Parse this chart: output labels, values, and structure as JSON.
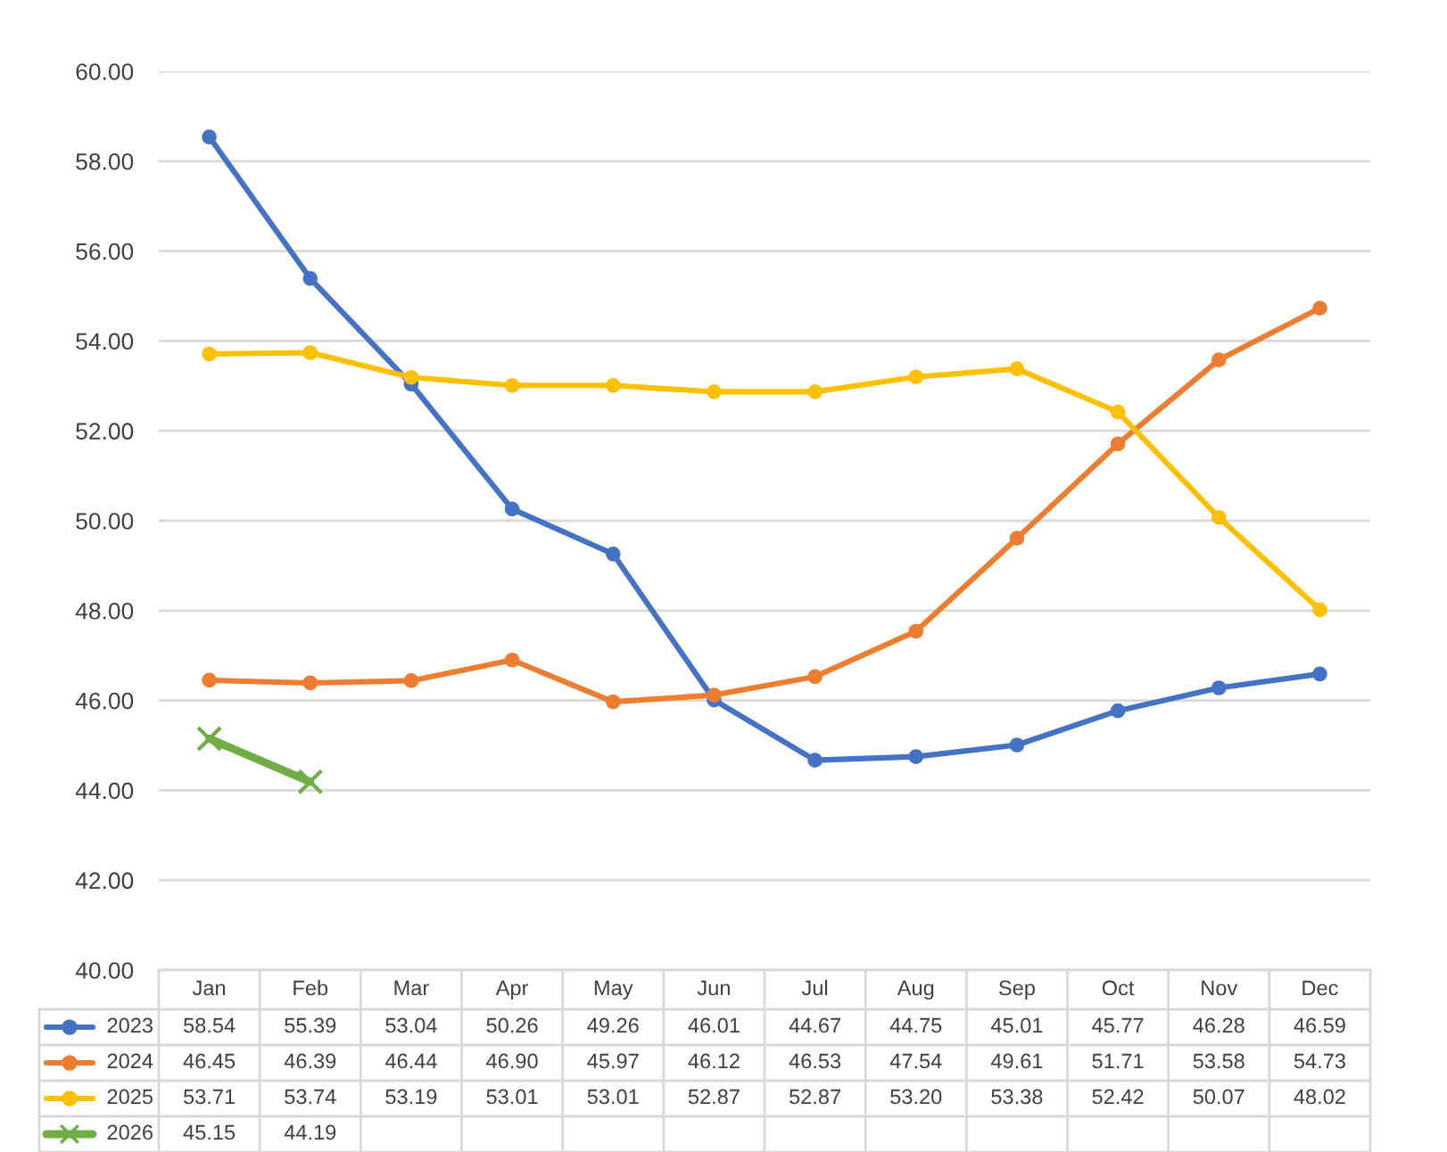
{
  "chart_data": {
    "type": "line",
    "categories": [
      "Jan",
      "Feb",
      "Mar",
      "Apr",
      "May",
      "Jun",
      "Jul",
      "Aug",
      "Sep",
      "Oct",
      "Nov",
      "Dec"
    ],
    "ylim": [
      40,
      60
    ],
    "yticks": [
      {
        "value": 40,
        "label": "40.00"
      },
      {
        "value": 42,
        "label": "42.00"
      },
      {
        "value": 44,
        "label": "44.00"
      },
      {
        "value": 46,
        "label": "46.00"
      },
      {
        "value": 48,
        "label": "48.00"
      },
      {
        "value": 50,
        "label": "50.00"
      },
      {
        "value": 52,
        "label": "52.00"
      },
      {
        "value": 54,
        "label": "54.00"
      },
      {
        "value": 56,
        "label": "56.00"
      },
      {
        "value": 58,
        "label": "58.00"
      },
      {
        "value": 60,
        "label": "60.00"
      }
    ],
    "grid": "y",
    "legend": "bottom",
    "marker": "circle",
    "line_style": "solid",
    "series": [
      {
        "name": "2023",
        "color": "#4472c4",
        "values": [
          58.54,
          55.39,
          53.04,
          50.26,
          49.26,
          46.01,
          44.67,
          44.75,
          45.01,
          45.77,
          46.28,
          46.59
        ],
        "value_labels": [
          "58.54",
          "55.39",
          "53.04",
          "50.26",
          "49.26",
          "46.01",
          "44.67",
          "44.75",
          "45.01",
          "45.77",
          "46.28",
          "46.59"
        ]
      },
      {
        "name": "2024",
        "color": "#ed7d31",
        "values": [
          46.45,
          46.39,
          46.44,
          46.9,
          45.97,
          46.12,
          46.53,
          47.54,
          49.61,
          51.71,
          53.58,
          54.73
        ],
        "value_labels": [
          "46.45",
          "46.39",
          "46.44",
          "46.90",
          "45.97",
          "46.12",
          "46.53",
          "47.54",
          "49.61",
          "51.71",
          "53.58",
          "54.73"
        ]
      },
      {
        "name": "2025",
        "color": "#ffc000",
        "values": [
          53.71,
          53.74,
          53.19,
          53.01,
          53.01,
          52.87,
          52.87,
          53.2,
          53.38,
          52.42,
          50.07,
          48.02
        ],
        "value_labels": [
          "53.71",
          "53.74",
          "53.19",
          "53.01",
          "53.01",
          "52.87",
          "52.87",
          "53.20",
          "53.38",
          "52.42",
          "50.07",
          "48.02"
        ]
      },
      {
        "name": "2026",
        "color": "#70ad47",
        "marker": "cross",
        "values": [
          45.15,
          44.19,
          null,
          null,
          null,
          null,
          null,
          null,
          null,
          null,
          null,
          null
        ],
        "value_labels": [
          "45.15",
          "44.19",
          null,
          null,
          null,
          null,
          null,
          null,
          null,
          null,
          null,
          null
        ]
      }
    ]
  }
}
